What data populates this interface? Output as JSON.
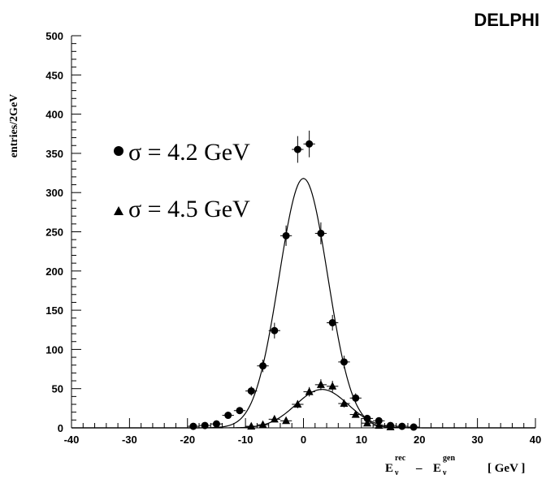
{
  "chart_data": {
    "type": "scatter",
    "experiment_label": "DELPHI",
    "ylabel": "entries/2GeV",
    "xlabel": {
      "E1": "E",
      "sub1": "ν",
      "sup1": "rec",
      "minus": "–",
      "E2": "E",
      "sub2": "ν",
      "sup2": "gen",
      "unit": "[ GeV ]"
    },
    "xlim": [
      -40,
      40
    ],
    "ylim": [
      0,
      500
    ],
    "x_ticks": [
      -40,
      -30,
      -20,
      -10,
      0,
      10,
      20,
      30,
      40
    ],
    "y_ticks": [
      0,
      50,
      100,
      150,
      200,
      250,
      300,
      350,
      400,
      450,
      500
    ],
    "grid": false,
    "series": [
      {
        "name": "σ = 4.2 GeV",
        "marker": "circle",
        "points": [
          {
            "x": -19,
            "y": 2,
            "err": 0
          },
          {
            "x": -17,
            "y": 3,
            "err": 0
          },
          {
            "x": -15,
            "y": 5,
            "err": 0
          },
          {
            "x": -13,
            "y": 16,
            "err": 3
          },
          {
            "x": -11,
            "y": 22,
            "err": 4
          },
          {
            "x": -9,
            "y": 47,
            "err": 6
          },
          {
            "x": -7,
            "y": 79,
            "err": 8
          },
          {
            "x": -5,
            "y": 124,
            "err": 10
          },
          {
            "x": -3,
            "y": 245,
            "err": 13
          },
          {
            "x": -1,
            "y": 355,
            "err": 17
          },
          {
            "x": 1,
            "y": 362,
            "err": 17
          },
          {
            "x": 3,
            "y": 248,
            "err": 14
          },
          {
            "x": 5,
            "y": 134,
            "err": 10
          },
          {
            "x": 7,
            "y": 84,
            "err": 8
          },
          {
            "x": 9,
            "y": 38,
            "err": 6
          },
          {
            "x": 11,
            "y": 12,
            "err": 3
          },
          {
            "x": 13,
            "y": 9,
            "err": 0
          },
          {
            "x": 15,
            "y": 3,
            "err": 0
          },
          {
            "x": 17,
            "y": 2,
            "err": 0
          },
          {
            "x": 19,
            "y": 1,
            "err": 0
          }
        ],
        "fit": {
          "A": 318,
          "mu": 0,
          "sigma": 4.2
        }
      },
      {
        "name": "σ = 4.5 GeV",
        "marker": "triangle",
        "points": [
          {
            "x": -9,
            "y": 2,
            "err": 0
          },
          {
            "x": -7,
            "y": 4,
            "err": 0
          },
          {
            "x": -5,
            "y": 11,
            "err": 3
          },
          {
            "x": -3,
            "y": 9,
            "err": 3
          },
          {
            "x": -1,
            "y": 30,
            "err": 5
          },
          {
            "x": 1,
            "y": 46,
            "err": 6
          },
          {
            "x": 3,
            "y": 55,
            "err": 7
          },
          {
            "x": 5,
            "y": 53,
            "err": 7
          },
          {
            "x": 7,
            "y": 31,
            "err": 5
          },
          {
            "x": 9,
            "y": 17,
            "err": 4
          },
          {
            "x": 11,
            "y": 6,
            "err": 2
          },
          {
            "x": 13,
            "y": 3,
            "err": 0
          },
          {
            "x": 15,
            "y": 1,
            "err": 0
          }
        ],
        "fit": {
          "A": 49,
          "mu": 3.2,
          "sigma": 4.5
        }
      }
    ]
  }
}
